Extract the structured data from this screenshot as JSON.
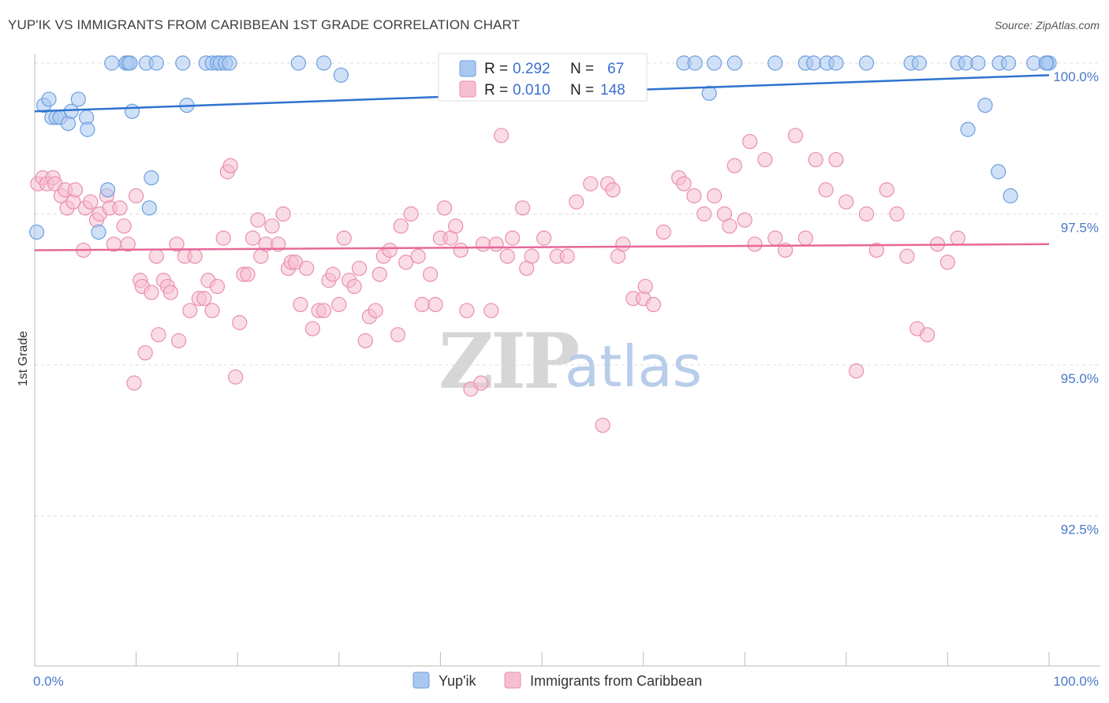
{
  "title": "YUP'IK VS IMMIGRANTS FROM CARIBBEAN 1ST GRADE CORRELATION CHART",
  "source": "Source: ZipAtlas.com",
  "watermark": {
    "zip": "ZIP",
    "atlas": "atlas"
  },
  "colors": {
    "blue_fill": "#a9c8f0",
    "blue_stroke": "#6d9ee0",
    "blue_line": "#2f72d0",
    "pink_fill": "#f6bfd0",
    "pink_stroke": "#ea8fad",
    "pink_line": "#e8689a",
    "grid": "#dddddd",
    "tick_text": "#4a78c8"
  },
  "legend": {
    "rows": [
      {
        "r_label": "R =",
        "r_value": "0.292",
        "n_label": "N =",
        "n_value": "67"
      },
      {
        "r_label": "R =",
        "r_value": "0.010",
        "n_label": "N =",
        "n_value": "148"
      }
    ]
  },
  "bottom_legend": [
    "Yup'ik",
    "Immigrants from Caribbean"
  ],
  "chart_data": {
    "type": "scatter",
    "xlabel": "",
    "ylabel": "1st Grade",
    "x_tick_labels": [
      "0.0%",
      "100.0%"
    ],
    "y_tick_labels": [
      "100.0%",
      "97.5%",
      "95.0%",
      "92.5%"
    ],
    "y_tick_values": [
      100.0,
      97.5,
      95.0,
      92.5
    ],
    "xlim": [
      0,
      100
    ],
    "ylim": [
      90.0,
      100.3
    ],
    "grid": true,
    "series": [
      {
        "name": "Yup'ik",
        "trend": [
          [
            0,
            99.2
          ],
          [
            100,
            99.8
          ]
        ],
        "points": [
          [
            0.2,
            97.2
          ],
          [
            0.9,
            99.3
          ],
          [
            1.4,
            99.4
          ],
          [
            1.7,
            99.1
          ],
          [
            2.1,
            99.1
          ],
          [
            2.5,
            99.1
          ],
          [
            3.3,
            99.0
          ],
          [
            3.6,
            99.2
          ],
          [
            4.3,
            99.4
          ],
          [
            5.1,
            99.1
          ],
          [
            5.2,
            98.9
          ],
          [
            6.3,
            97.2
          ],
          [
            7.2,
            97.9
          ],
          [
            7.6,
            100.0
          ],
          [
            9.0,
            100.0
          ],
          [
            9.2,
            100.0
          ],
          [
            9.4,
            100.0
          ],
          [
            9.6,
            99.2
          ],
          [
            11.0,
            100.0
          ],
          [
            11.3,
            97.6
          ],
          [
            11.5,
            98.1
          ],
          [
            12.0,
            100.0
          ],
          [
            14.6,
            100.0
          ],
          [
            15.0,
            99.3
          ],
          [
            16.9,
            100.0
          ],
          [
            17.5,
            100.0
          ],
          [
            18.0,
            100.0
          ],
          [
            18.3,
            100.0
          ],
          [
            18.8,
            100.0
          ],
          [
            19.2,
            100.0
          ],
          [
            26.0,
            100.0
          ],
          [
            28.5,
            100.0
          ],
          [
            30.2,
            99.8
          ],
          [
            41.0,
            100.0
          ],
          [
            46.0,
            99.8
          ],
          [
            48.6,
            100.0
          ],
          [
            50.0,
            100.0
          ],
          [
            54.8,
            99.9
          ],
          [
            55.5,
            100.0
          ],
          [
            57.5,
            100.0
          ],
          [
            59.5,
            100.0
          ],
          [
            64.0,
            100.0
          ],
          [
            65.1,
            100.0
          ],
          [
            66.5,
            99.5
          ],
          [
            67.0,
            100.0
          ],
          [
            69.0,
            100.0
          ],
          [
            73.0,
            100.0
          ],
          [
            76.0,
            100.0
          ],
          [
            76.8,
            100.0
          ],
          [
            78.1,
            100.0
          ],
          [
            79.0,
            100.0
          ],
          [
            82.0,
            100.0
          ],
          [
            86.4,
            100.0
          ],
          [
            87.2,
            100.0
          ],
          [
            91.0,
            100.0
          ],
          [
            91.8,
            100.0
          ],
          [
            93.0,
            100.0
          ],
          [
            95.1,
            100.0
          ],
          [
            96.0,
            100.0
          ],
          [
            98.5,
            100.0
          ],
          [
            99.8,
            100.0
          ],
          [
            100.0,
            100.0
          ],
          [
            99.7,
            100.0
          ],
          [
            93.7,
            99.3
          ],
          [
            95.0,
            98.2
          ],
          [
            96.2,
            97.8
          ],
          [
            92.0,
            98.9
          ]
        ]
      },
      {
        "name": "Immigrants from Caribbean",
        "trend": [
          [
            0,
            96.9
          ],
          [
            100,
            97.0
          ]
        ],
        "points": [
          [
            0.3,
            98.0
          ],
          [
            0.8,
            98.1
          ],
          [
            1.2,
            98.0
          ],
          [
            1.8,
            98.1
          ],
          [
            2.0,
            98.0
          ],
          [
            2.6,
            97.8
          ],
          [
            3.0,
            97.9
          ],
          [
            3.2,
            97.6
          ],
          [
            3.8,
            97.7
          ],
          [
            4.0,
            97.9
          ],
          [
            4.8,
            96.9
          ],
          [
            5.0,
            97.6
          ],
          [
            5.5,
            97.7
          ],
          [
            6.1,
            97.4
          ],
          [
            6.4,
            97.5
          ],
          [
            7.1,
            97.8
          ],
          [
            7.4,
            97.6
          ],
          [
            7.8,
            97.0
          ],
          [
            8.4,
            97.6
          ],
          [
            8.8,
            97.3
          ],
          [
            9.2,
            97.0
          ],
          [
            9.8,
            94.7
          ],
          [
            10.0,
            97.8
          ],
          [
            10.4,
            96.4
          ],
          [
            10.6,
            96.3
          ],
          [
            10.9,
            95.2
          ],
          [
            11.5,
            96.2
          ],
          [
            12.0,
            96.8
          ],
          [
            12.2,
            95.5
          ],
          [
            12.7,
            96.4
          ],
          [
            13.1,
            96.3
          ],
          [
            13.4,
            96.2
          ],
          [
            14.0,
            97.0
          ],
          [
            14.2,
            95.4
          ],
          [
            14.8,
            96.8
          ],
          [
            15.3,
            95.9
          ],
          [
            15.8,
            96.8
          ],
          [
            16.2,
            96.1
          ],
          [
            16.7,
            96.1
          ],
          [
            17.1,
            96.4
          ],
          [
            17.5,
            95.9
          ],
          [
            18.0,
            96.3
          ],
          [
            18.6,
            97.1
          ],
          [
            19.0,
            98.2
          ],
          [
            19.3,
            98.3
          ],
          [
            19.8,
            94.8
          ],
          [
            20.2,
            95.7
          ],
          [
            20.6,
            96.5
          ],
          [
            21.0,
            96.5
          ],
          [
            21.5,
            97.1
          ],
          [
            22.0,
            97.4
          ],
          [
            22.3,
            96.8
          ],
          [
            22.8,
            97.0
          ],
          [
            23.4,
            97.3
          ],
          [
            24.0,
            97.0
          ],
          [
            24.5,
            97.5
          ],
          [
            25.0,
            96.6
          ],
          [
            25.3,
            96.7
          ],
          [
            25.7,
            96.7
          ],
          [
            26.2,
            96.0
          ],
          [
            26.8,
            96.6
          ],
          [
            27.4,
            95.6
          ],
          [
            28.0,
            95.9
          ],
          [
            28.5,
            95.9
          ],
          [
            29.0,
            96.4
          ],
          [
            29.4,
            96.5
          ],
          [
            30.0,
            96.0
          ],
          [
            30.5,
            97.1
          ],
          [
            31.0,
            96.4
          ],
          [
            31.5,
            96.3
          ],
          [
            32.0,
            96.6
          ],
          [
            32.6,
            95.4
          ],
          [
            33.0,
            95.8
          ],
          [
            33.6,
            95.9
          ],
          [
            34.0,
            96.5
          ],
          [
            34.4,
            96.8
          ],
          [
            35.0,
            96.9
          ],
          [
            35.8,
            95.5
          ],
          [
            36.1,
            97.3
          ],
          [
            36.6,
            96.7
          ],
          [
            37.1,
            97.5
          ],
          [
            37.8,
            96.8
          ],
          [
            38.2,
            96.0
          ],
          [
            39.0,
            96.5
          ],
          [
            39.5,
            96.0
          ],
          [
            40.0,
            97.1
          ],
          [
            40.4,
            97.6
          ],
          [
            41.0,
            97.1
          ],
          [
            41.5,
            97.3
          ],
          [
            42.0,
            96.9
          ],
          [
            42.6,
            95.9
          ],
          [
            43.0,
            94.6
          ],
          [
            44.0,
            94.7
          ],
          [
            44.2,
            97.0
          ],
          [
            45.0,
            95.9
          ],
          [
            45.5,
            97.0
          ],
          [
            46.0,
            98.8
          ],
          [
            46.6,
            96.8
          ],
          [
            47.1,
            97.1
          ],
          [
            48.1,
            97.6
          ],
          [
            48.5,
            96.6
          ],
          [
            49.0,
            96.8
          ],
          [
            50.2,
            97.1
          ],
          [
            51.5,
            96.8
          ],
          [
            52.5,
            96.8
          ],
          [
            53.4,
            97.7
          ],
          [
            54.8,
            98.0
          ],
          [
            56.0,
            94.0
          ],
          [
            56.5,
            98.0
          ],
          [
            57.0,
            97.9
          ],
          [
            57.5,
            96.8
          ],
          [
            58.0,
            97.0
          ],
          [
            59.0,
            96.1
          ],
          [
            60.0,
            96.1
          ],
          [
            60.2,
            96.3
          ],
          [
            61.0,
            96.0
          ],
          [
            62.0,
            97.2
          ],
          [
            63.5,
            98.1
          ],
          [
            64.0,
            98.0
          ],
          [
            65.0,
            97.8
          ],
          [
            66.0,
            97.5
          ],
          [
            67.0,
            97.8
          ],
          [
            68.0,
            97.5
          ],
          [
            68.5,
            97.3
          ],
          [
            69.0,
            98.3
          ],
          [
            70.0,
            97.4
          ],
          [
            70.5,
            98.7
          ],
          [
            71.0,
            97.0
          ],
          [
            72.0,
            98.4
          ],
          [
            73.0,
            97.1
          ],
          [
            74.0,
            96.9
          ],
          [
            75.0,
            98.8
          ],
          [
            76.0,
            97.1
          ],
          [
            77.0,
            98.4
          ],
          [
            78.0,
            97.9
          ],
          [
            79.0,
            98.4
          ],
          [
            80.0,
            97.7
          ],
          [
            81.0,
            94.9
          ],
          [
            82.0,
            97.5
          ],
          [
            83.0,
            96.9
          ],
          [
            84.0,
            97.9
          ],
          [
            85.0,
            97.5
          ],
          [
            86.0,
            96.8
          ],
          [
            87.0,
            95.6
          ],
          [
            88.0,
            95.5
          ],
          [
            89.0,
            97.0
          ],
          [
            90.0,
            96.7
          ],
          [
            91.0,
            97.1
          ]
        ]
      }
    ]
  }
}
